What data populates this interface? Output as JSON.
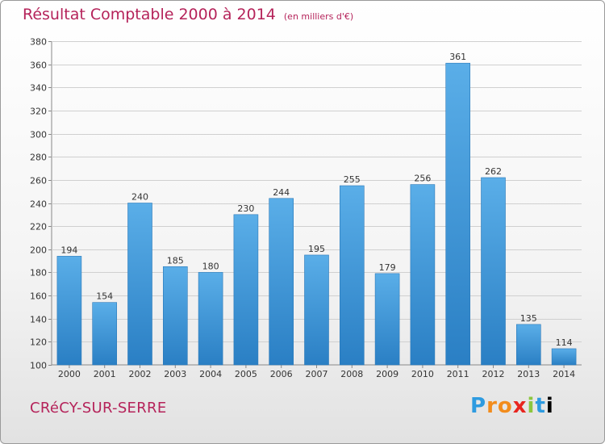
{
  "header": {
    "title": "Résultat Comptable 2000 à 2014",
    "subtitle": "(en milliers d'€)"
  },
  "footer": {
    "commune": "CRéCY-SUR-SERRE",
    "logo_letters": [
      "P",
      "r",
      "o",
      "x",
      "i",
      "t",
      "i"
    ]
  },
  "chart_data": {
    "type": "bar",
    "title": "Résultat Comptable 2000 à 2014",
    "subtitle": "(en milliers d'€)",
    "xlabel": "",
    "ylabel": "",
    "categories": [
      "2000",
      "2001",
      "2002",
      "2003",
      "2004",
      "2005",
      "2006",
      "2007",
      "2008",
      "2009",
      "2010",
      "2011",
      "2012",
      "2013",
      "2014"
    ],
    "values": [
      194,
      154,
      240,
      185,
      180,
      230,
      244,
      195,
      255,
      179,
      256,
      361,
      262,
      135,
      114
    ],
    "ylim": [
      100,
      380
    ],
    "yticks": [
      100,
      120,
      140,
      160,
      180,
      200,
      220,
      240,
      260,
      280,
      300,
      320,
      340,
      360,
      380
    ],
    "grid": true,
    "legend": "none",
    "bar_color": "#3d96dc"
  }
}
